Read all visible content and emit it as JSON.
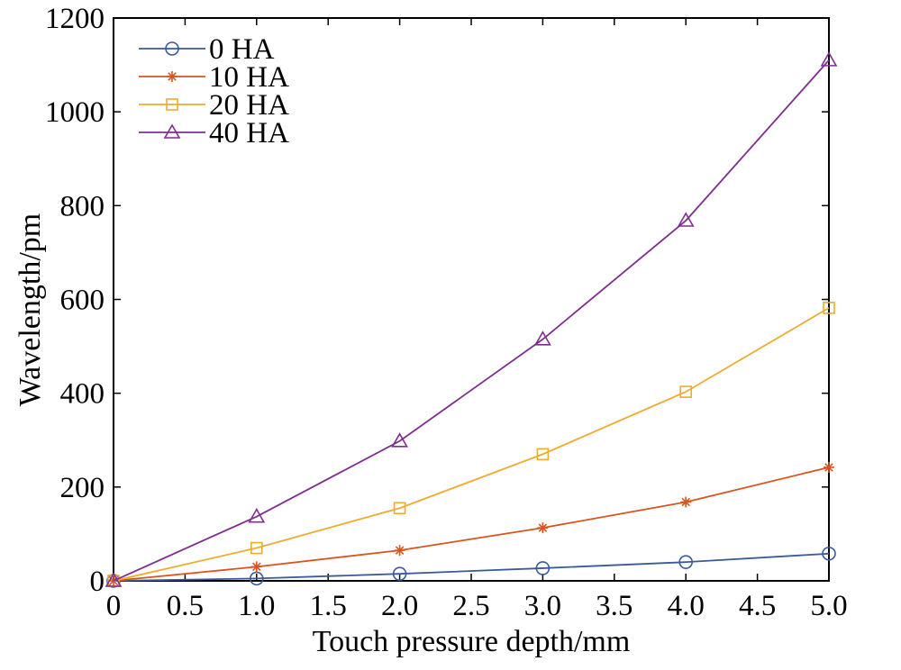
{
  "chart_data": {
    "type": "line",
    "title": "",
    "xlabel": "Touch pressure depth/mm",
    "ylabel": "Wavelength/pm",
    "xlim": [
      0,
      5
    ],
    "ylim": [
      0,
      1200
    ],
    "grid": false,
    "legend_position": "top-left",
    "x_ticks": [
      0,
      0.5,
      1.0,
      1.5,
      2.0,
      2.5,
      3.0,
      3.5,
      4.0,
      4.5,
      5.0
    ],
    "x_tick_labels": [
      "0",
      "0.5",
      "1.0",
      "1.5",
      "2.0",
      "2.5",
      "3.0",
      "3.5",
      "4.0",
      "4.5",
      "5.0"
    ],
    "y_ticks": [
      0,
      200,
      400,
      600,
      800,
      1000,
      1200
    ],
    "y_tick_labels": [
      "0",
      "200",
      "400",
      "600",
      "800",
      "1000",
      "1200"
    ],
    "x": [
      0,
      1,
      2,
      3,
      4,
      5
    ],
    "series": [
      {
        "name": "0 HA",
        "marker": "circle",
        "color": "#3a5a99",
        "values": [
          0,
          5,
          15,
          27,
          40,
          58
        ]
      },
      {
        "name": "10 HA",
        "marker": "asterisk",
        "color": "#d9541e",
        "values": [
          0,
          30,
          65,
          113,
          168,
          242
        ]
      },
      {
        "name": "20 HA",
        "marker": "square",
        "color": "#eeab2e",
        "values": [
          0,
          70,
          155,
          270,
          403,
          582
        ]
      },
      {
        "name": "40 HA",
        "marker": "triangle",
        "color": "#7e2f8e",
        "values": [
          0,
          137,
          298,
          515,
          768,
          1110
        ]
      }
    ]
  }
}
